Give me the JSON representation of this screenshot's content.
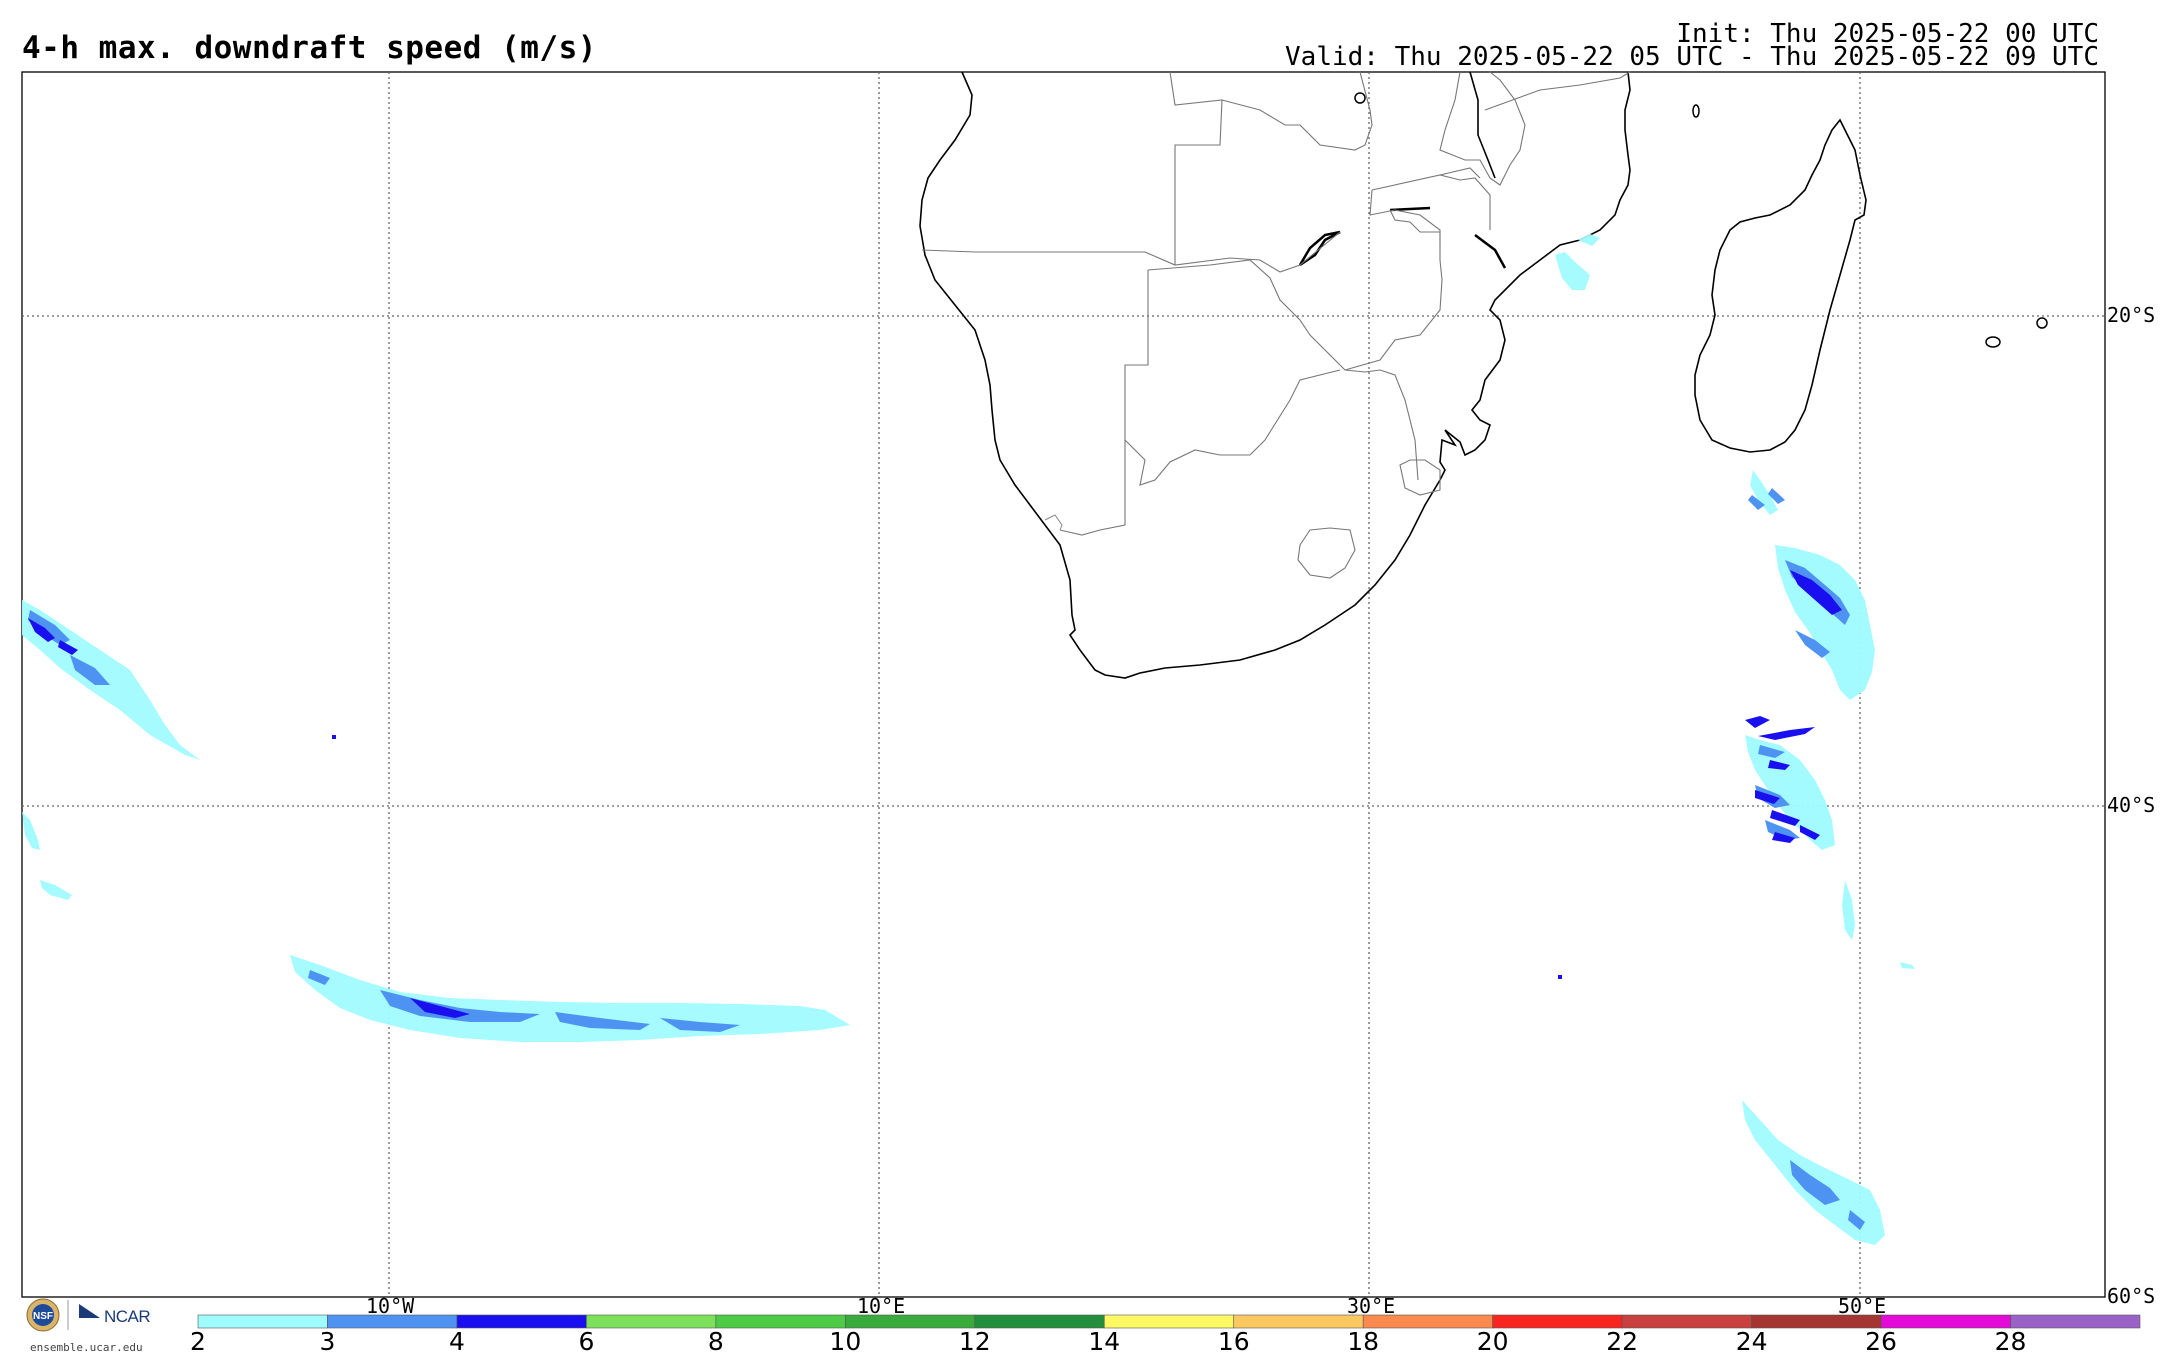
{
  "header": {
    "title": "4-h max. downdraft speed (m/s)",
    "init": "Init: Thu 2025-05-22 00 UTC",
    "valid": "Valid: Thu 2025-05-22 05 UTC - Thu 2025-05-22 09 UTC"
  },
  "map": {
    "lat_labels": [
      "20°S",
      "40°S",
      "60°S"
    ],
    "lon_labels": [
      "10°W",
      "10°E",
      "30°E",
      "50°E"
    ]
  },
  "colorbar": {
    "ticks": [
      "2",
      "3",
      "4",
      "6",
      "8",
      "10",
      "12",
      "14",
      "16",
      "18",
      "20",
      "22",
      "24",
      "26",
      "28"
    ],
    "colors": [
      "#a0fbff",
      "#4f93f2",
      "#1a10ef",
      "#7de05a",
      "#4dca46",
      "#3aaa3c",
      "#238f3c",
      "#fdf863",
      "#fbc862",
      "#fb8a4f",
      "#f82520",
      "#c8413f",
      "#a53530",
      "#e40ad8",
      "#9a61c7"
    ]
  },
  "branding": {
    "logo_text": "NCAR",
    "url": "ensemble.ucar.edu"
  }
}
